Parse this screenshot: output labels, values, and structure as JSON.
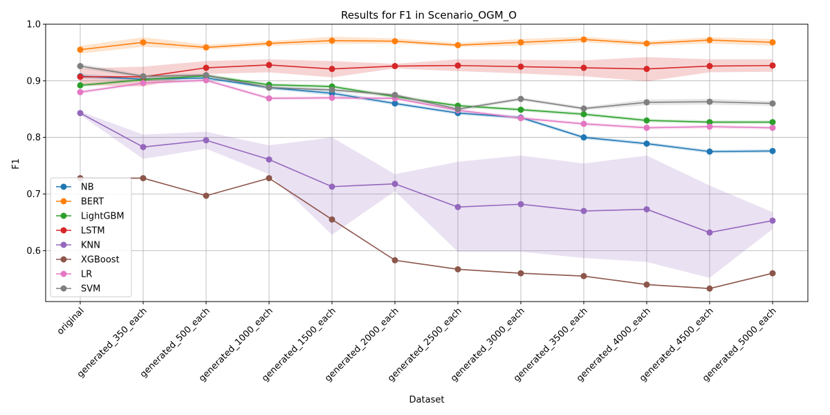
{
  "chart_data": {
    "type": "line",
    "title": "Results for F1 in Scenario_OGM_O",
    "xlabel": "Dataset",
    "ylabel": "F1",
    "categories": [
      "original",
      "generated_350_each",
      "generated_500_each",
      "generated_1000_each",
      "generated_1500_each",
      "generated_2000_each",
      "generated_2500_each",
      "generated_3000_each",
      "generated_3500_each",
      "generated_4000_each",
      "generated_4500_each",
      "generated_5000_each"
    ],
    "ylim": [
      0.51,
      1.0
    ],
    "yticks": [
      0.6,
      0.7,
      0.8,
      0.9,
      1.0
    ],
    "ytick_labels": [
      "0.6",
      "0.7",
      "0.8",
      "0.9",
      "1.0"
    ],
    "grid": true,
    "legend_position": "lower-left",
    "series": [
      {
        "name": "NB",
        "color": "#1f77b4",
        "values": [
          0.908,
          0.903,
          0.905,
          0.888,
          0.878,
          0.86,
          0.843,
          0.835,
          0.8,
          0.789,
          0.775,
          0.776
        ],
        "band_low": [
          0.904,
          0.9,
          0.902,
          0.885,
          0.874,
          0.857,
          0.84,
          0.832,
          0.797,
          0.786,
          0.772,
          0.773
        ],
        "band_high": [
          0.912,
          0.906,
          0.908,
          0.891,
          0.882,
          0.863,
          0.846,
          0.838,
          0.803,
          0.792,
          0.778,
          0.779
        ]
      },
      {
        "name": "BERT",
        "color": "#ff7f0e",
        "values": [
          0.955,
          0.968,
          0.959,
          0.966,
          0.971,
          0.97,
          0.963,
          0.968,
          0.973,
          0.966,
          0.972,
          0.968
        ],
        "band_low": [
          0.948,
          0.96,
          0.955,
          0.962,
          0.965,
          0.966,
          0.96,
          0.962,
          0.968,
          0.962,
          0.966,
          0.962
        ],
        "band_high": [
          0.962,
          0.977,
          0.964,
          0.97,
          0.978,
          0.975,
          0.967,
          0.974,
          0.978,
          0.97,
          0.977,
          0.974
        ]
      },
      {
        "name": "LightGBM",
        "color": "#2ca02c",
        "values": [
          0.892,
          0.902,
          0.909,
          0.893,
          0.89,
          0.872,
          0.856,
          0.849,
          0.841,
          0.83,
          0.827,
          0.827
        ],
        "band_low": [
          0.889,
          0.899,
          0.906,
          0.89,
          0.887,
          0.869,
          0.853,
          0.846,
          0.838,
          0.827,
          0.824,
          0.824
        ],
        "band_high": [
          0.895,
          0.905,
          0.912,
          0.896,
          0.893,
          0.875,
          0.859,
          0.852,
          0.844,
          0.833,
          0.83,
          0.83
        ]
      },
      {
        "name": "LSTM",
        "color": "#d62728",
        "values": [
          0.907,
          0.907,
          0.923,
          0.928,
          0.921,
          0.926,
          0.927,
          0.925,
          0.923,
          0.921,
          0.926,
          0.927
        ],
        "band_low": [
          0.892,
          0.89,
          0.912,
          0.915,
          0.906,
          0.922,
          0.917,
          0.913,
          0.908,
          0.899,
          0.915,
          0.916
        ],
        "band_high": [
          0.922,
          0.925,
          0.935,
          0.938,
          0.935,
          0.93,
          0.938,
          0.937,
          0.936,
          0.942,
          0.938,
          0.938
        ]
      },
      {
        "name": "KNN",
        "color": "#9467bd",
        "values": [
          0.843,
          0.783,
          0.795,
          0.761,
          0.713,
          0.718,
          0.677,
          0.682,
          0.67,
          0.673,
          0.632,
          0.653
        ],
        "band_low": [
          0.84,
          0.762,
          0.78,
          0.735,
          0.628,
          0.705,
          0.598,
          0.598,
          0.587,
          0.58,
          0.552,
          0.638
        ],
        "band_high": [
          0.846,
          0.805,
          0.81,
          0.786,
          0.8,
          0.735,
          0.757,
          0.768,
          0.754,
          0.768,
          0.715,
          0.668
        ]
      },
      {
        "name": "XGBoost",
        "color": "#8c564b",
        "values": [
          0.728,
          0.728,
          0.697,
          0.728,
          0.655,
          0.583,
          0.567,
          0.56,
          0.555,
          0.54,
          0.533,
          0.56
        ],
        "band_low": [
          0.727,
          0.727,
          0.696,
          0.727,
          0.654,
          0.582,
          0.566,
          0.559,
          0.554,
          0.539,
          0.532,
          0.559
        ],
        "band_high": [
          0.729,
          0.729,
          0.698,
          0.729,
          0.656,
          0.584,
          0.568,
          0.561,
          0.556,
          0.541,
          0.534,
          0.561
        ]
      },
      {
        "name": "LR",
        "color": "#e377c2",
        "values": [
          0.88,
          0.896,
          0.901,
          0.869,
          0.87,
          0.869,
          0.848,
          0.834,
          0.824,
          0.817,
          0.819,
          0.817
        ],
        "band_low": [
          0.877,
          0.893,
          0.898,
          0.866,
          0.867,
          0.866,
          0.845,
          0.831,
          0.821,
          0.814,
          0.816,
          0.814
        ],
        "band_high": [
          0.883,
          0.899,
          0.904,
          0.872,
          0.873,
          0.872,
          0.851,
          0.837,
          0.827,
          0.82,
          0.822,
          0.82
        ]
      },
      {
        "name": "SVM",
        "color": "#7f7f7f",
        "values": [
          0.926,
          0.908,
          0.91,
          0.888,
          0.884,
          0.875,
          0.85,
          0.868,
          0.851,
          0.862,
          0.863,
          0.86
        ],
        "band_low": [
          0.922,
          0.905,
          0.907,
          0.885,
          0.881,
          0.872,
          0.847,
          0.865,
          0.848,
          0.857,
          0.858,
          0.856
        ],
        "band_high": [
          0.93,
          0.911,
          0.913,
          0.891,
          0.887,
          0.878,
          0.853,
          0.871,
          0.854,
          0.867,
          0.868,
          0.864
        ]
      }
    ]
  }
}
